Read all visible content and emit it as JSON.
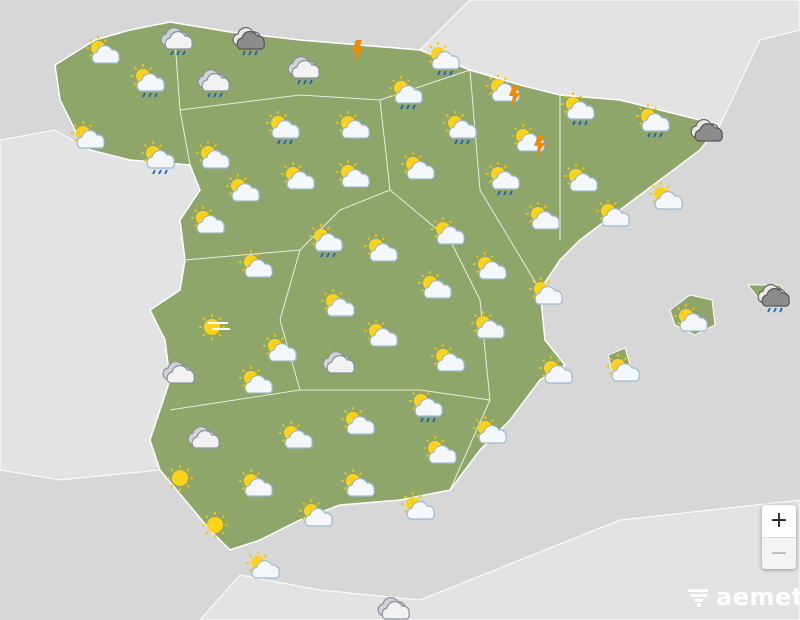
{
  "colors": {
    "sea": "#d7d7d7",
    "land": "#e3e3e3",
    "spain": "#8ea66a",
    "border": "#ffffff"
  },
  "forecast_icons": [
    "sun-cloud",
    "cloud-rain",
    "dark-cloud-rain",
    "storm",
    "sun-cloud-rain",
    "sun-cloud-rain",
    "cloud-rain",
    "cloud-rain",
    "sun-cloud-rain",
    "sun-cloud-storm",
    "sun-cloud",
    "sun-cloud-rain",
    "sun-cloud-rain",
    "sun-cloud",
    "sun-cloud-rain",
    "sun-cloud-storm",
    "sun-cloud-rain",
    "sun-cloud-rain",
    "dark-cloud",
    "sun-cloud",
    "sun-cloud",
    "sun-cloud",
    "sun-cloud",
    "sun-cloud",
    "sun-cloud-rain",
    "sun-cloud",
    "sun-cloud",
    "sun-cloud-rain",
    "sun-cloud",
    "sun-cloud",
    "sun-cloud",
    "sun-cloud",
    "sun-cloud",
    "sun-cloud",
    "sun-cloud",
    "sun-cloud",
    "sun-cloud",
    "sun-cloud",
    "sun-haze",
    "sun-cloud",
    "sun-cloud",
    "sun-cloud",
    "dark-cloud-rain",
    "sun-cloud",
    "cloud",
    "sun-cloud",
    "cloud",
    "sun-cloud",
    "sun-cloud",
    "sun-cloud",
    "sun-cloud-rain",
    "cloud",
    "sun-cloud",
    "sun-cloud",
    "sun-cloud",
    "sun-cloud",
    "sun",
    "sun-cloud",
    "sun-cloud",
    "sun-cloud",
    "sun-cloud",
    "sun",
    "sun-cloud",
    "cloud"
  ],
  "zoom": {
    "in": "+",
    "out": "−"
  },
  "logo": {
    "text": "aemet"
  }
}
